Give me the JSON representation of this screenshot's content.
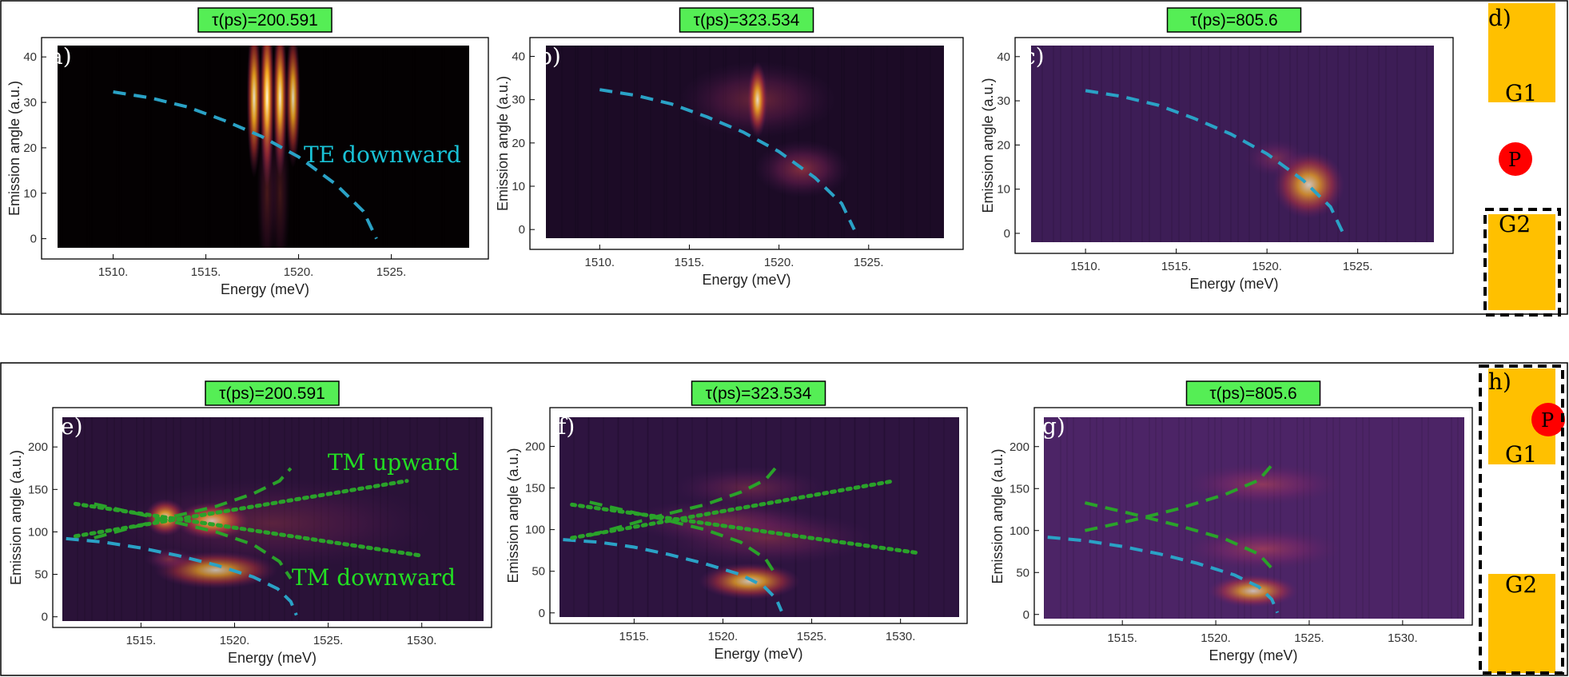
{
  "colors": {
    "background": "#ffffff",
    "heat_bg": "#1a0a24",
    "te_curve": "#2aa2c6",
    "tm_curve": "#2aa22a",
    "label_green_bg": "#55ee55",
    "te_text": "#19c2d6",
    "tm_text": "#22dd22",
    "gate": "#ffc000",
    "pump": "#ff0000"
  },
  "tags": {
    "tau1": "τ(ps)=200.591",
    "tau2": "τ(ps)=323.534",
    "tau3": "τ(ps)=805.6"
  },
  "annotations": {
    "te_downward": "TE downward",
    "tm_upward": "TM upward",
    "tm_downward": "TM downward"
  },
  "geometry_panels": {
    "top": {
      "label": "d)",
      "gate1": "G1",
      "gate2": "G2",
      "pump": "P"
    },
    "bottom": {
      "label": "h)",
      "gate1": "G1",
      "gate2": "G2",
      "pump": "P"
    }
  },
  "chart_data": [
    {
      "type": "heatmap",
      "label": "a)",
      "tau": "τ(ps)=200.591",
      "xlabel": "Energy (meV)",
      "ylabel": "Emission angle (a.u.)",
      "xlim": [
        1507,
        1529.2
      ],
      "ylim": [
        -2,
        42.5
      ],
      "xticks": [
        "1510.",
        "1515.",
        "1520.",
        "1525."
      ],
      "xtick_values": [
        1510,
        1515,
        1520,
        1525
      ],
      "yticks": [
        "0",
        "10",
        "20",
        "30",
        "40"
      ],
      "ytick_values": [
        0,
        10,
        20,
        30,
        40
      ],
      "bg": "#040102",
      "blobs": [
        {
          "x": 1517.6,
          "y": 31,
          "sx": 0.18,
          "sy": 8,
          "a": 0.9,
          "cls": "hot"
        },
        {
          "x": 1518.3,
          "y": 31,
          "sx": 0.18,
          "sy": 9,
          "a": 1,
          "cls": "hot"
        },
        {
          "x": 1519.0,
          "y": 31,
          "sx": 0.18,
          "sy": 8,
          "a": 0.95,
          "cls": "hot"
        },
        {
          "x": 1519.7,
          "y": 31,
          "sx": 0.18,
          "sy": 7,
          "a": 0.85,
          "cls": "hot"
        },
        {
          "x": 1518.3,
          "y": 10,
          "sx": 0.25,
          "sy": 9,
          "a": 0.35,
          "cls": "warm"
        },
        {
          "x": 1519.0,
          "y": 10,
          "sx": 0.25,
          "sy": 9,
          "a": 0.3,
          "cls": "warm"
        }
      ],
      "curves": [
        {
          "kind": "te",
          "style": "dashed",
          "points": [
            [
              1510,
              32.3
            ],
            [
              1512,
              31
            ],
            [
              1514,
              29
            ],
            [
              1516,
              26
            ],
            [
              1518,
              22.5
            ],
            [
              1520,
              18
            ],
            [
              1522,
              12
            ],
            [
              1523.5,
              6
            ],
            [
              1524.2,
              0
            ]
          ]
        }
      ]
    },
    {
      "type": "heatmap",
      "label": "b)",
      "tau": "τ(ps)=323.534",
      "xlabel": "Energy (meV)",
      "ylabel": "Emission angle (a.u.)",
      "xlim": [
        1507,
        1529.2
      ],
      "ylim": [
        -2,
        42.5
      ],
      "xticks": [
        "1510.",
        "1515.",
        "1520.",
        "1525."
      ],
      "xtick_values": [
        1510,
        1515,
        1520,
        1525
      ],
      "yticks": [
        "0",
        "10",
        "20",
        "30",
        "40"
      ],
      "ytick_values": [
        0,
        10,
        20,
        30,
        40
      ],
      "bg": "#1c0b26",
      "blobs": [
        {
          "x": 1518.8,
          "y": 30,
          "sx": 2.0,
          "sy": 4,
          "a": 0.45,
          "cls": "warm"
        },
        {
          "x": 1518.8,
          "y": 30,
          "sx": 0.25,
          "sy": 4,
          "a": 0.85,
          "cls": "hot"
        },
        {
          "x": 1521.3,
          "y": 14,
          "sx": 1.2,
          "sy": 3,
          "a": 0.6,
          "cls": "warm"
        }
      ],
      "curves": [
        {
          "kind": "te",
          "style": "dashed",
          "points": [
            [
              1510,
              32.3
            ],
            [
              1512,
              31
            ],
            [
              1514,
              29
            ],
            [
              1516,
              26
            ],
            [
              1518,
              22.5
            ],
            [
              1520,
              18
            ],
            [
              1522,
              12
            ],
            [
              1523.5,
              6
            ],
            [
              1524.2,
              0
            ]
          ]
        }
      ]
    },
    {
      "type": "heatmap",
      "label": "c)",
      "tau": "τ(ps)=805.6",
      "xlabel": "Energy (meV)",
      "ylabel": "Emission angle (a.u.)",
      "xlim": [
        1507,
        1529.2
      ],
      "ylim": [
        -2,
        42.5
      ],
      "xticks": [
        "1510.",
        "1515.",
        "1520.",
        "1525."
      ],
      "xtick_values": [
        1510,
        1515,
        1520,
        1525
      ],
      "yticks": [
        "0",
        "10",
        "20",
        "30",
        "40"
      ],
      "ytick_values": [
        0,
        10,
        20,
        30,
        40
      ],
      "bg": "#3d1d56",
      "blobs": [
        {
          "x": 1522.3,
          "y": 11,
          "sx": 0.9,
          "sy": 3.5,
          "a": 0.75,
          "cls": "hot"
        },
        {
          "x": 1520.5,
          "y": 17,
          "sx": 0.8,
          "sy": 2,
          "a": 0.4,
          "cls": "warm"
        }
      ],
      "curves": [
        {
          "kind": "te",
          "style": "dashed",
          "points": [
            [
              1510,
              32.3
            ],
            [
              1512,
              31
            ],
            [
              1514,
              29
            ],
            [
              1516,
              26
            ],
            [
              1518,
              22.5
            ],
            [
              1520,
              18
            ],
            [
              1522,
              12
            ],
            [
              1523.5,
              6
            ],
            [
              1524.2,
              0
            ]
          ]
        }
      ]
    },
    {
      "type": "heatmap",
      "label": "e)",
      "tau": "τ(ps)=200.591",
      "xlabel": "Energy (meV)",
      "ylabel": "Emission angle (a.u.)",
      "xlim": [
        1510.8,
        1533.3
      ],
      "ylim": [
        -5,
        235
      ],
      "xticks": [
        "1515.",
        "1520.",
        "1525.",
        "1530."
      ],
      "xtick_values": [
        1515,
        1520,
        1525,
        1530
      ],
      "yticks": [
        "0",
        "50",
        "100",
        "150",
        "200"
      ],
      "ytick_values": [
        0,
        50,
        100,
        150,
        200
      ],
      "bg": "#2a1238",
      "blobs": [
        {
          "x": 1516.3,
          "y": 117,
          "sx": 0.5,
          "sy": 10,
          "a": 0.9,
          "cls": "hot"
        },
        {
          "x": 1518.8,
          "y": 113,
          "sx": 0.9,
          "sy": 10,
          "a": 0.85,
          "cls": "hot"
        },
        {
          "x": 1522,
          "y": 110,
          "sx": 4,
          "sy": 25,
          "a": 0.3,
          "cls": "warm"
        },
        {
          "x": 1519,
          "y": 55,
          "sx": 1.5,
          "sy": 10,
          "a": 0.7,
          "cls": "hot"
        },
        {
          "x": 1516.5,
          "y": 68,
          "sx": 0.6,
          "sy": 6,
          "a": 0.5,
          "cls": "warm"
        }
      ],
      "curves": [
        {
          "kind": "te",
          "style": "dashed",
          "points": [
            [
              1511,
              92
            ],
            [
              1513,
              88
            ],
            [
              1515,
              81
            ],
            [
              1517,
              72
            ],
            [
              1519,
              61
            ],
            [
              1521,
              47
            ],
            [
              1522.3,
              33
            ],
            [
              1523,
              18
            ],
            [
              1523.3,
              2
            ]
          ]
        },
        {
          "kind": "tm",
          "style": "dashed",
          "points": [
            [
              1512.5,
              93
            ],
            [
              1514.5,
              105
            ],
            [
              1516.5,
              117
            ],
            [
              1519,
              130
            ],
            [
              1521,
              145
            ],
            [
              1522.4,
              160
            ],
            [
              1523,
              175
            ]
          ]
        },
        {
          "kind": "tm",
          "style": "dashed",
          "points": [
            [
              1512.5,
              133
            ],
            [
              1514.5,
              123
            ],
            [
              1516.5,
              113
            ],
            [
              1519,
              100
            ],
            [
              1521,
              85
            ],
            [
              1522.4,
              65
            ],
            [
              1523,
              45
            ]
          ]
        },
        {
          "kind": "tm",
          "style": "dotted",
          "points": [
            [
              1511.5,
              95
            ],
            [
              1529.2,
              160
            ]
          ]
        },
        {
          "kind": "tm",
          "style": "dotted",
          "points": [
            [
              1511.5,
              133
            ],
            [
              1530,
              72
            ]
          ]
        }
      ]
    },
    {
      "type": "heatmap",
      "label": "f)",
      "tau": "τ(ps)=323.534",
      "xlabel": "Energy (meV)",
      "ylabel": "Emission angle (a.u.)",
      "xlim": [
        1510.8,
        1533.3
      ],
      "ylim": [
        -5,
        235
      ],
      "xticks": [
        "1515.",
        "1520.",
        "1525.",
        "1530."
      ],
      "xtick_values": [
        1515,
        1520,
        1525,
        1530
      ],
      "yticks": [
        "0",
        "50",
        "100",
        "150",
        "200"
      ],
      "ytick_values": [
        0,
        50,
        100,
        150,
        200
      ],
      "bg": "#2e1440",
      "blobs": [
        {
          "x": 1520,
          "y": 110,
          "sx": 2.5,
          "sy": 12,
          "a": 0.45,
          "cls": "warm"
        },
        {
          "x": 1522.5,
          "y": 90,
          "sx": 2.8,
          "sy": 15,
          "a": 0.4,
          "cls": "warm"
        },
        {
          "x": 1521.5,
          "y": 150,
          "sx": 2,
          "sy": 12,
          "a": 0.35,
          "cls": "warm"
        },
        {
          "x": 1521.5,
          "y": 38,
          "sx": 1.3,
          "sy": 10,
          "a": 0.75,
          "cls": "hot"
        }
      ],
      "curves": [
        {
          "kind": "te",
          "style": "dashed",
          "points": [
            [
              1511,
              88
            ],
            [
              1513,
              85
            ],
            [
              1515,
              79
            ],
            [
              1517,
              70
            ],
            [
              1519,
              59
            ],
            [
              1521,
              46
            ],
            [
              1522.3,
              32
            ],
            [
              1523,
              17
            ],
            [
              1523.3,
              2
            ]
          ]
        },
        {
          "kind": "tm",
          "style": "dashed",
          "points": [
            [
              1512.5,
              93
            ],
            [
              1514.5,
              105
            ],
            [
              1516.5,
              117
            ],
            [
              1519,
              130
            ],
            [
              1521,
              145
            ],
            [
              1522.4,
              160
            ],
            [
              1523,
              175
            ]
          ]
        },
        {
          "kind": "tm",
          "style": "dashed",
          "points": [
            [
              1512.5,
              133
            ],
            [
              1514.5,
              123
            ],
            [
              1516.5,
              113
            ],
            [
              1519,
              100
            ],
            [
              1521,
              85
            ],
            [
              1522.4,
              65
            ],
            [
              1523,
              45
            ]
          ]
        },
        {
          "kind": "tm",
          "style": "dotted",
          "points": [
            [
              1511.5,
              90
            ],
            [
              1529.5,
              158
            ]
          ]
        },
        {
          "kind": "tm",
          "style": "dotted",
          "points": [
            [
              1511.5,
              130
            ],
            [
              1531,
              72
            ]
          ]
        }
      ]
    },
    {
      "type": "heatmap",
      "label": "g)",
      "tau": "τ(ps)=805.6",
      "xlabel": "Energy (meV)",
      "ylabel": "Emission angle (a.u.)",
      "xlim": [
        1510.8,
        1533.3
      ],
      "ylim": [
        -5,
        235
      ],
      "xticks": [
        "1515.",
        "1520.",
        "1525.",
        "1530."
      ],
      "xtick_values": [
        1515,
        1520,
        1525,
        1530
      ],
      "yticks": [
        "0",
        "50",
        "100",
        "150",
        "200"
      ],
      "ytick_values": [
        0,
        50,
        100,
        150,
        200
      ],
      "bg": "#4c2466",
      "blobs": [
        {
          "x": 1522.5,
          "y": 155,
          "sx": 2,
          "sy": 12,
          "a": 0.5,
          "cls": "warm"
        },
        {
          "x": 1522.5,
          "y": 78,
          "sx": 2,
          "sy": 12,
          "a": 0.55,
          "cls": "warm"
        },
        {
          "x": 1522,
          "y": 28,
          "sx": 1.1,
          "sy": 9,
          "a": 0.7,
          "cls": "hot"
        }
      ],
      "curves": [
        {
          "kind": "te",
          "style": "dashed",
          "points": [
            [
              1511,
              92
            ],
            [
              1513,
              88
            ],
            [
              1515,
              81
            ],
            [
              1517,
              72
            ],
            [
              1519,
              61
            ],
            [
              1521,
              47
            ],
            [
              1522.3,
              33
            ],
            [
              1523,
              18
            ],
            [
              1523.3,
              2
            ]
          ]
        },
        {
          "kind": "tm",
          "style": "dashed",
          "points": [
            [
              1513,
              100
            ],
            [
              1515.5,
              112
            ],
            [
              1518,
              126
            ],
            [
              1520.5,
              143
            ],
            [
              1522.3,
              160
            ],
            [
              1523,
              178
            ]
          ]
        },
        {
          "kind": "tm",
          "style": "dashed",
          "points": [
            [
              1513,
              133
            ],
            [
              1515.5,
              120
            ],
            [
              1518,
              106
            ],
            [
              1520.5,
              90
            ],
            [
              1522.3,
              72
            ],
            [
              1523,
              55
            ]
          ]
        }
      ]
    }
  ]
}
